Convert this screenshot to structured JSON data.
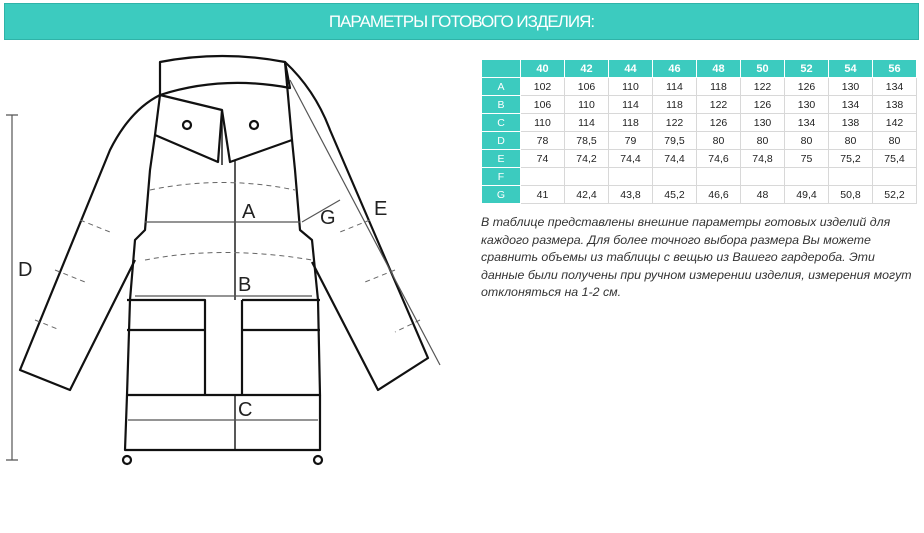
{
  "title": "ПАРАМЕТРЫ ГОТОВОГО ИЗДЕЛИЯ:",
  "accent_color": "#3ccbbf",
  "diagram_labels": {
    "A": "A",
    "B": "B",
    "C": "C",
    "D": "D",
    "E": "E",
    "G": "G"
  },
  "table": {
    "sizes": [
      "40",
      "42",
      "44",
      "46",
      "48",
      "50",
      "52",
      "54",
      "56"
    ],
    "rows": [
      {
        "label": "A",
        "values": [
          "102",
          "106",
          "110",
          "114",
          "118",
          "122",
          "126",
          "130",
          "134"
        ]
      },
      {
        "label": "B",
        "values": [
          "106",
          "110",
          "114",
          "118",
          "122",
          "126",
          "130",
          "134",
          "138"
        ]
      },
      {
        "label": "C",
        "values": [
          "110",
          "114",
          "118",
          "122",
          "126",
          "130",
          "134",
          "138",
          "142"
        ]
      },
      {
        "label": "D",
        "values": [
          "78",
          "78,5",
          "79",
          "79,5",
          "80",
          "80",
          "80",
          "80",
          "80"
        ]
      },
      {
        "label": "E",
        "values": [
          "74",
          "74,2",
          "74,4",
          "74,4",
          "74,6",
          "74,8",
          "75",
          "75,2",
          "75,4"
        ]
      },
      {
        "label": "F",
        "values": [
          "",
          "",
          "",
          "",
          "",
          "",
          "",
          "",
          ""
        ]
      },
      {
        "label": "G",
        "values": [
          "41",
          "42,4",
          "43,8",
          "45,2",
          "46,6",
          "48",
          "49,4",
          "50,8",
          "52,2"
        ]
      }
    ]
  },
  "description": "В таблице представлены внешние параметры готовых изделий для каждого размера. Для более точного выбора размера Вы можете сравнить объемы из таблицы с вещью из Вашего гардероба. Эти данные были получены при ручном измерении изделия, измерения могут отклоняться на 1-2 см."
}
